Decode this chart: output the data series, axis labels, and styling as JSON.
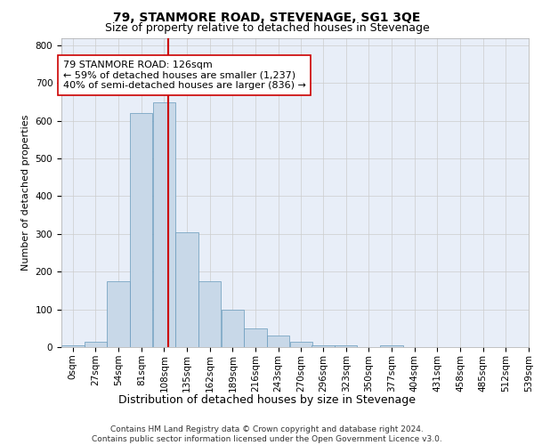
{
  "title": "79, STANMORE ROAD, STEVENAGE, SG1 3QE",
  "subtitle": "Size of property relative to detached houses in Stevenage",
  "xlabel": "Distribution of detached houses by size in Stevenage",
  "ylabel": "Number of detached properties",
  "bin_labels": [
    "0sqm",
    "27sqm",
    "54sqm",
    "81sqm",
    "108sqm",
    "135sqm",
    "162sqm",
    "189sqm",
    "216sqm",
    "243sqm",
    "270sqm",
    "296sqm",
    "323sqm",
    "350sqm",
    "377sqm",
    "404sqm",
    "431sqm",
    "458sqm",
    "485sqm",
    "512sqm",
    "539sqm"
  ],
  "bar_values": [
    5,
    15,
    175,
    620,
    650,
    305,
    175,
    100,
    50,
    30,
    15,
    5,
    5,
    0,
    5,
    0,
    0,
    0,
    0,
    0
  ],
  "bin_edges": [
    0,
    27,
    54,
    81,
    108,
    135,
    162,
    189,
    216,
    243,
    270,
    296,
    323,
    350,
    377,
    404,
    431,
    458,
    485,
    512,
    539
  ],
  "bar_color": "#c8d8e8",
  "bar_edge_color": "#6699bb",
  "property_value": 126,
  "marker_line_color": "#cc0000",
  "annotation_text": "79 STANMORE ROAD: 126sqm\n← 59% of detached houses are smaller (1,237)\n40% of semi-detached houses are larger (836) →",
  "annotation_box_color": "#ffffff",
  "annotation_box_edge_color": "#cc0000",
  "ylim": [
    0,
    820
  ],
  "yticks": [
    0,
    100,
    200,
    300,
    400,
    500,
    600,
    700,
    800
  ],
  "grid_color": "#cccccc",
  "background_color": "#e8eef8",
  "footer_text": "Contains HM Land Registry data © Crown copyright and database right 2024.\nContains public sector information licensed under the Open Government Licence v3.0.",
  "title_fontsize": 10,
  "subtitle_fontsize": 9,
  "xlabel_fontsize": 9,
  "ylabel_fontsize": 8,
  "tick_fontsize": 7.5,
  "annotation_fontsize": 8,
  "footer_fontsize": 6.5
}
